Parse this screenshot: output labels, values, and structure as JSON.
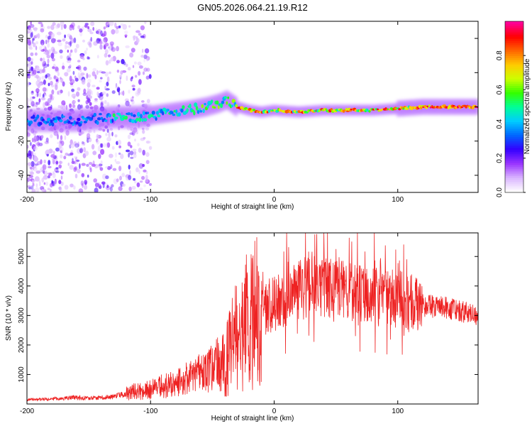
{
  "figure_title": "GN05.2026.064.21.19.R12",
  "chart_data": [
    {
      "type": "heatmap",
      "title": "GN05.2026.064.21.19.R12",
      "xlabel": "Height of straight line (km)",
      "ylabel": "Frequency (Hz)",
      "xlim": [
        -200,
        165
      ],
      "ylim": [
        -50,
        50
      ],
      "x_ticks": [
        -200,
        -100,
        0,
        100
      ],
      "y_ticks": [
        -40,
        -20,
        0,
        20,
        40
      ],
      "colorbar": {
        "label": "Normalized spectral amplitude",
        "range": [
          0,
          1
        ],
        "ticks": [
          "0.0",
          "0.2",
          "0.4",
          "0.6",
          "0.8"
        ],
        "tick_values": [
          0,
          0.2,
          0.4,
          0.6,
          0.8
        ],
        "colormap": [
          "#ffffff",
          "#d9b3ff",
          "#9933ff",
          "#3300ff",
          "#0066ff",
          "#00ccff",
          "#00ff99",
          "#33ff00",
          "#ccff00",
          "#ffcc00",
          "#ff6600",
          "#ff0000",
          "#ff0099"
        ]
      },
      "ridge": {
        "x": [
          -200,
          -160,
          -130,
          -110,
          -90,
          -70,
          -55,
          -45,
          -38,
          -30,
          -20,
          -10,
          0,
          20,
          40,
          60,
          80,
          100,
          120,
          140,
          165
        ],
        "y": [
          -8,
          -8,
          -6,
          -6,
          -4,
          -2,
          0,
          2,
          4,
          0,
          -2,
          -3,
          -2,
          -3,
          -2,
          -2,
          -2,
          -1,
          0,
          0,
          0
        ]
      },
      "scatter_region_x": [
        -200,
        -100
      ]
    },
    {
      "type": "line",
      "xlabel": "Height of straight line (km)",
      "ylabel": "SNR (10 * v/v)",
      "xlim": [
        -200,
        165
      ],
      "ylim": [
        0,
        5800
      ],
      "x_ticks": [
        -200,
        -100,
        0,
        100
      ],
      "y_ticks": [
        1000,
        2000,
        3000,
        4000,
        5000
      ],
      "series": [
        {
          "name": "SNR",
          "color": "#ee2222",
          "x": [
            -200,
            -180,
            -160,
            -150,
            -140,
            -130,
            -120,
            -110,
            -100,
            -90,
            -80,
            -70,
            -60,
            -50,
            -40,
            -35,
            -30,
            -25,
            -20,
            -15,
            -10,
            -5,
            0,
            5,
            10,
            20,
            30,
            40,
            50,
            60,
            70,
            80,
            90,
            100,
            110,
            120,
            130,
            140,
            150,
            160,
            165
          ],
          "y": [
            150,
            170,
            220,
            200,
            220,
            250,
            350,
            450,
            500,
            600,
            700,
            850,
            1000,
            1200,
            1500,
            1900,
            2300,
            2700,
            2900,
            3100,
            3200,
            3300,
            3400,
            3500,
            3600,
            3800,
            4100,
            4000,
            3900,
            3850,
            3750,
            3700,
            3600,
            3550,
            3450,
            3350,
            3300,
            3250,
            3150,
            3050,
            2950
          ]
        }
      ]
    }
  ]
}
